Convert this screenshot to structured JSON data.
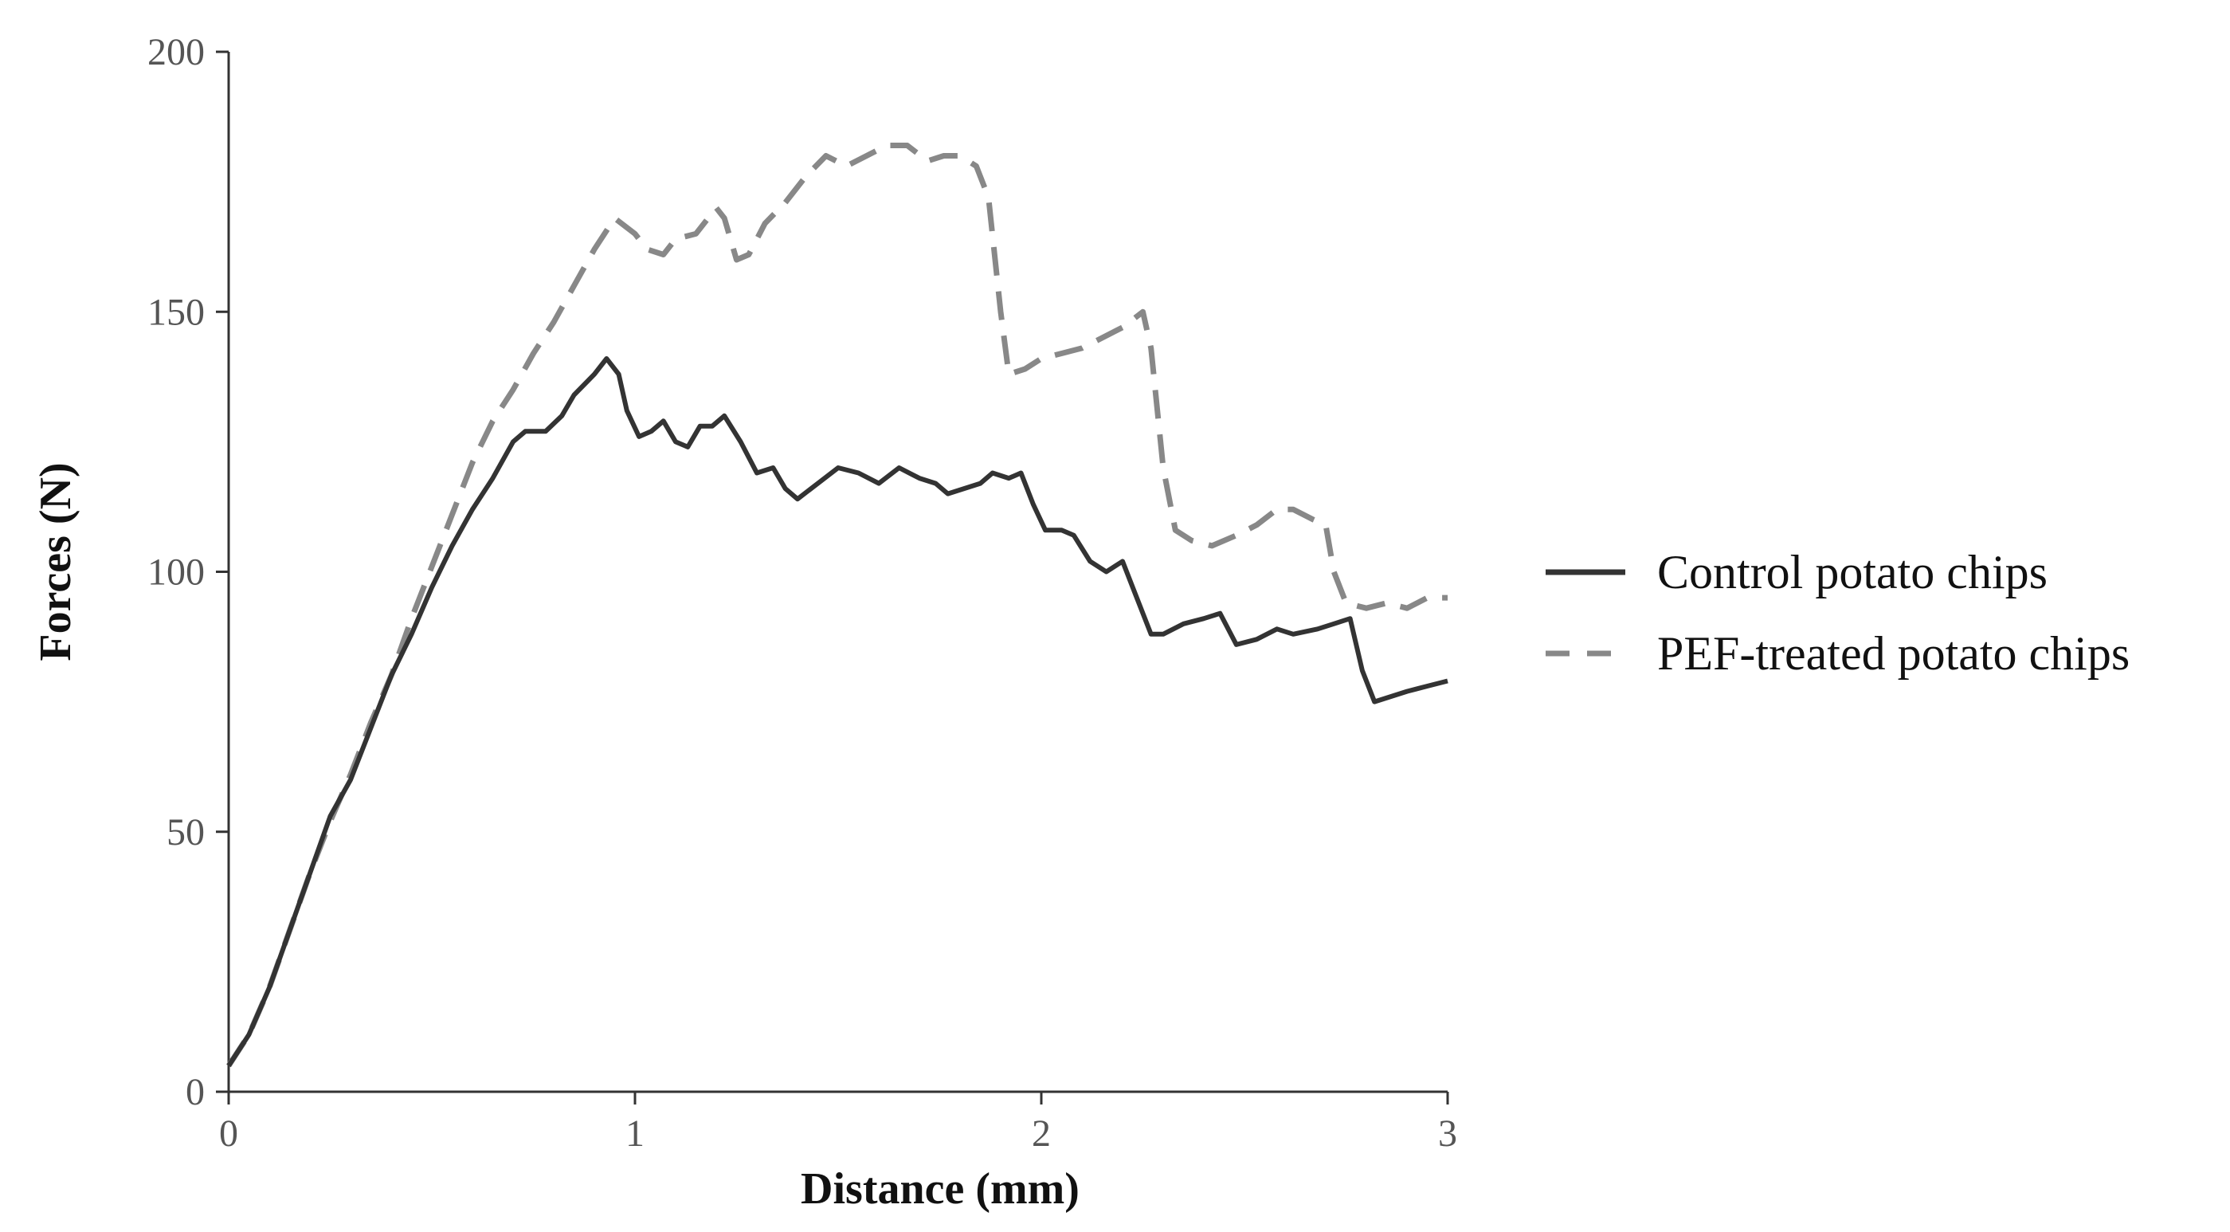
{
  "chart_data": {
    "type": "line",
    "title": "",
    "xlabel": "Distance (mm)",
    "ylabel": "Forces (N)",
    "xlim": [
      0,
      3
    ],
    "ylim": [
      0,
      200
    ],
    "xticks": [
      "0",
      "1",
      "2",
      "3"
    ],
    "yticks": [
      "0",
      "50",
      "100",
      "150",
      "200"
    ],
    "grid": false,
    "legend": "right",
    "series": [
      {
        "name": "Control potato chips",
        "color": "#333333",
        "dash": "solid",
        "points": [
          [
            0,
            5
          ],
          [
            0.05,
            11
          ],
          [
            0.1,
            20
          ],
          [
            0.15,
            31
          ],
          [
            0.2,
            42
          ],
          [
            0.25,
            53
          ],
          [
            0.3,
            60
          ],
          [
            0.35,
            70
          ],
          [
            0.4,
            80
          ],
          [
            0.45,
            88
          ],
          [
            0.5,
            97
          ],
          [
            0.55,
            105
          ],
          [
            0.6,
            112
          ],
          [
            0.65,
            118
          ],
          [
            0.7,
            125
          ],
          [
            0.73,
            127
          ],
          [
            0.78,
            127
          ],
          [
            0.82,
            130
          ],
          [
            0.85,
            134
          ],
          [
            0.9,
            138
          ],
          [
            0.93,
            141
          ],
          [
            0.96,
            138
          ],
          [
            0.98,
            131
          ],
          [
            1.01,
            126
          ],
          [
            1.04,
            127
          ],
          [
            1.07,
            129
          ],
          [
            1.1,
            125
          ],
          [
            1.13,
            124
          ],
          [
            1.16,
            128
          ],
          [
            1.19,
            128
          ],
          [
            1.22,
            130
          ],
          [
            1.26,
            125
          ],
          [
            1.3,
            119
          ],
          [
            1.34,
            120
          ],
          [
            1.37,
            116
          ],
          [
            1.4,
            114
          ],
          [
            1.45,
            117
          ],
          [
            1.5,
            120
          ],
          [
            1.55,
            119
          ],
          [
            1.6,
            117
          ],
          [
            1.65,
            120
          ],
          [
            1.7,
            118
          ],
          [
            1.74,
            117
          ],
          [
            1.77,
            115
          ],
          [
            1.81,
            116
          ],
          [
            1.85,
            117
          ],
          [
            1.88,
            119
          ],
          [
            1.92,
            118
          ],
          [
            1.95,
            119
          ],
          [
            1.98,
            113
          ],
          [
            2.01,
            108
          ],
          [
            2.05,
            108
          ],
          [
            2.08,
            107
          ],
          [
            2.12,
            102
          ],
          [
            2.16,
            100
          ],
          [
            2.2,
            102
          ],
          [
            2.23,
            96
          ],
          [
            2.27,
            88
          ],
          [
            2.3,
            88
          ],
          [
            2.35,
            90
          ],
          [
            2.4,
            91
          ],
          [
            2.44,
            92
          ],
          [
            2.48,
            86
          ],
          [
            2.53,
            87
          ],
          [
            2.58,
            89
          ],
          [
            2.62,
            88
          ],
          [
            2.68,
            89
          ],
          [
            2.72,
            90
          ],
          [
            2.76,
            91
          ],
          [
            2.79,
            81
          ],
          [
            2.82,
            75
          ],
          [
            2.86,
            76
          ],
          [
            2.9,
            77
          ],
          [
            2.95,
            78
          ],
          [
            3.0,
            79
          ]
        ]
      },
      {
        "name": "PEF-treated potato chips",
        "color": "#888888",
        "dash": "dashed",
        "points": [
          [
            0,
            5
          ],
          [
            0.05,
            11
          ],
          [
            0.1,
            20
          ],
          [
            0.15,
            31
          ],
          [
            0.2,
            42
          ],
          [
            0.25,
            52
          ],
          [
            0.3,
            61
          ],
          [
            0.35,
            71
          ],
          [
            0.4,
            80
          ],
          [
            0.45,
            91
          ],
          [
            0.5,
            101
          ],
          [
            0.55,
            111
          ],
          [
            0.6,
            121
          ],
          [
            0.65,
            129
          ],
          [
            0.7,
            135
          ],
          [
            0.75,
            142
          ],
          [
            0.8,
            148
          ],
          [
            0.85,
            155
          ],
          [
            0.9,
            162
          ],
          [
            0.95,
            168
          ],
          [
            1.0,
            165
          ],
          [
            1.03,
            162
          ],
          [
            1.07,
            161
          ],
          [
            1.1,
            164
          ],
          [
            1.15,
            165
          ],
          [
            1.2,
            170
          ],
          [
            1.22,
            168
          ],
          [
            1.25,
            160
          ],
          [
            1.28,
            161
          ],
          [
            1.32,
            167
          ],
          [
            1.37,
            171
          ],
          [
            1.42,
            176
          ],
          [
            1.47,
            180
          ],
          [
            1.52,
            178
          ],
          [
            1.57,
            180
          ],
          [
            1.62,
            182
          ],
          [
            1.67,
            182
          ],
          [
            1.72,
            179
          ],
          [
            1.76,
            180
          ],
          [
            1.8,
            180
          ],
          [
            1.84,
            178
          ],
          [
            1.87,
            172
          ],
          [
            1.9,
            150
          ],
          [
            1.92,
            138
          ],
          [
            1.96,
            139
          ],
          [
            2.0,
            141
          ],
          [
            2.05,
            142
          ],
          [
            2.1,
            143
          ],
          [
            2.15,
            145
          ],
          [
            2.2,
            147
          ],
          [
            2.25,
            150
          ],
          [
            2.27,
            143
          ],
          [
            2.3,
            120
          ],
          [
            2.33,
            108
          ],
          [
            2.37,
            106
          ],
          [
            2.42,
            105
          ],
          [
            2.48,
            107
          ],
          [
            2.53,
            109
          ],
          [
            2.58,
            112
          ],
          [
            2.62,
            112
          ],
          [
            2.67,
            110
          ],
          [
            2.7,
            109
          ],
          [
            2.72,
            100
          ],
          [
            2.75,
            94
          ],
          [
            2.8,
            93
          ],
          [
            2.85,
            94
          ],
          [
            2.9,
            93
          ],
          [
            2.95,
            95
          ],
          [
            3.0,
            95
          ]
        ]
      }
    ]
  }
}
